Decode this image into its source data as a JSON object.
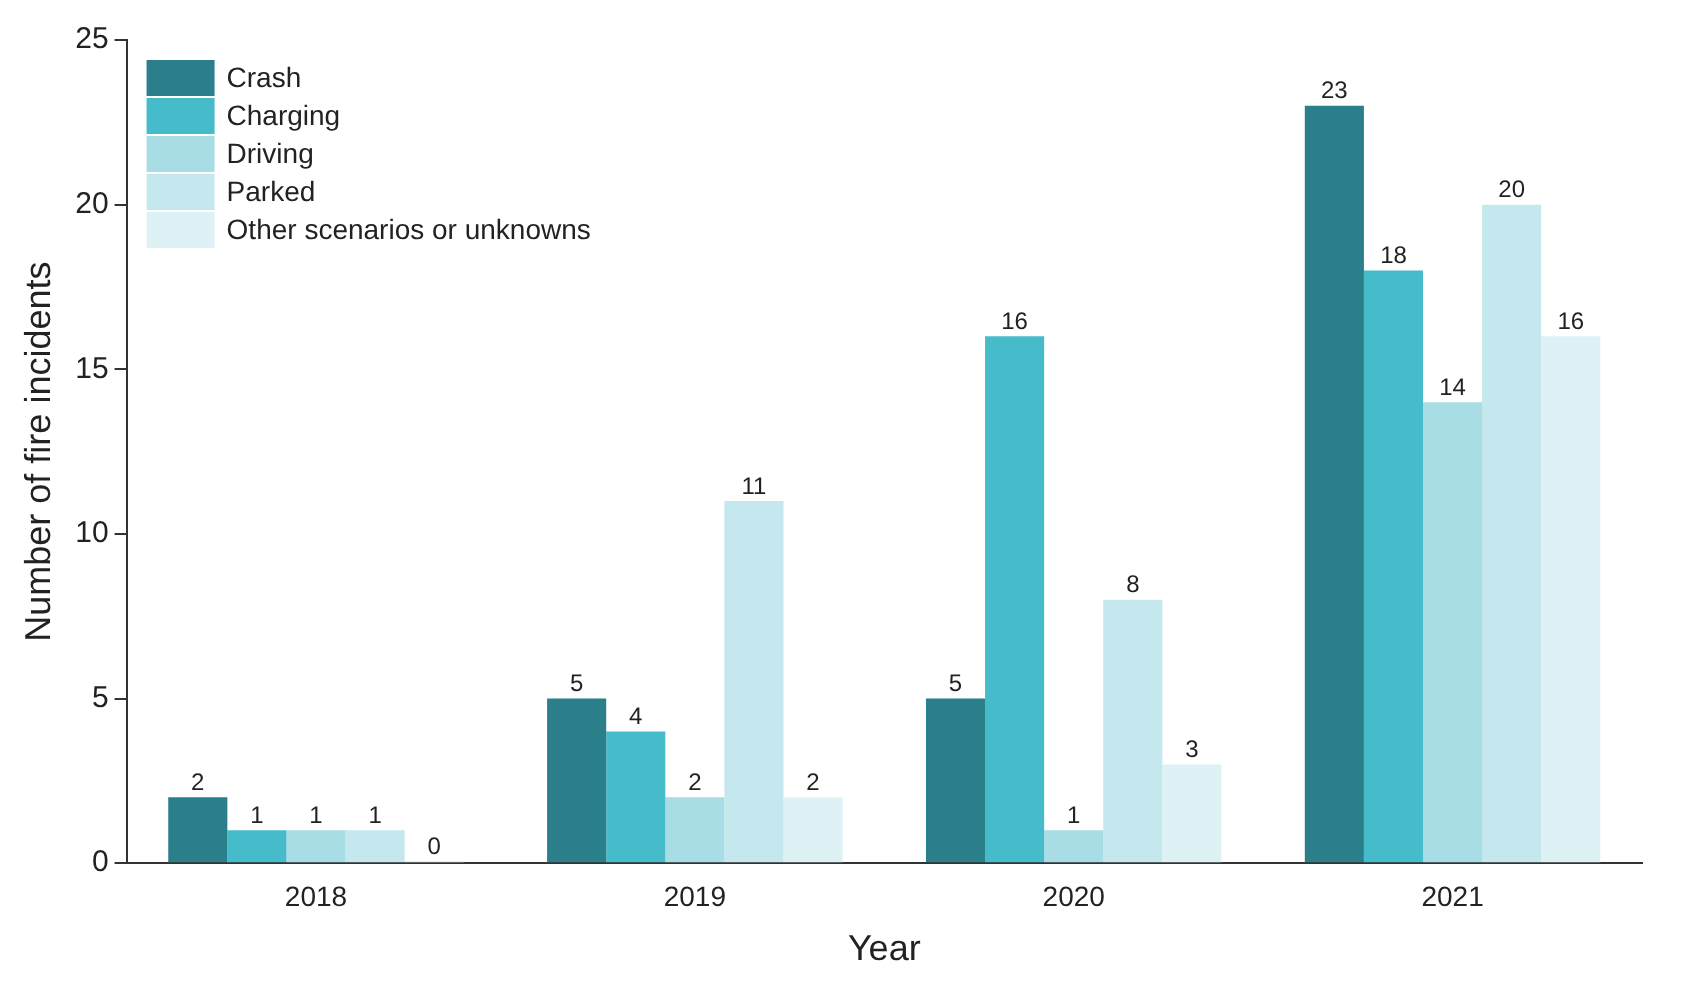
{
  "chart_data": {
    "type": "bar",
    "xlabel": "Year",
    "ylabel": "Number of fire incidents",
    "categories": [
      "2018",
      "2019",
      "2020",
      "2021"
    ],
    "series": [
      {
        "name": "Crash",
        "color": "#2a7f8a",
        "values": [
          2,
          5,
          5,
          23
        ]
      },
      {
        "name": "Charging",
        "color": "#46bccb",
        "values": [
          1,
          4,
          16,
          18
        ]
      },
      {
        "name": "Driving",
        "color": "#a8dde5",
        "values": [
          1,
          2,
          1,
          14
        ]
      },
      {
        "name": "Parked",
        "color": "#c4e8ee",
        "values": [
          1,
          11,
          8,
          20
        ]
      },
      {
        "name": "Other scenarios or unknowns",
        "color": "#def2f5",
        "values": [
          0,
          2,
          3,
          16
        ]
      }
    ],
    "ylim": [
      0,
      25
    ],
    "yticks": [
      0,
      5,
      10,
      15,
      20,
      25
    ],
    "grid": false,
    "legend": "top left",
    "data_labels": true
  }
}
